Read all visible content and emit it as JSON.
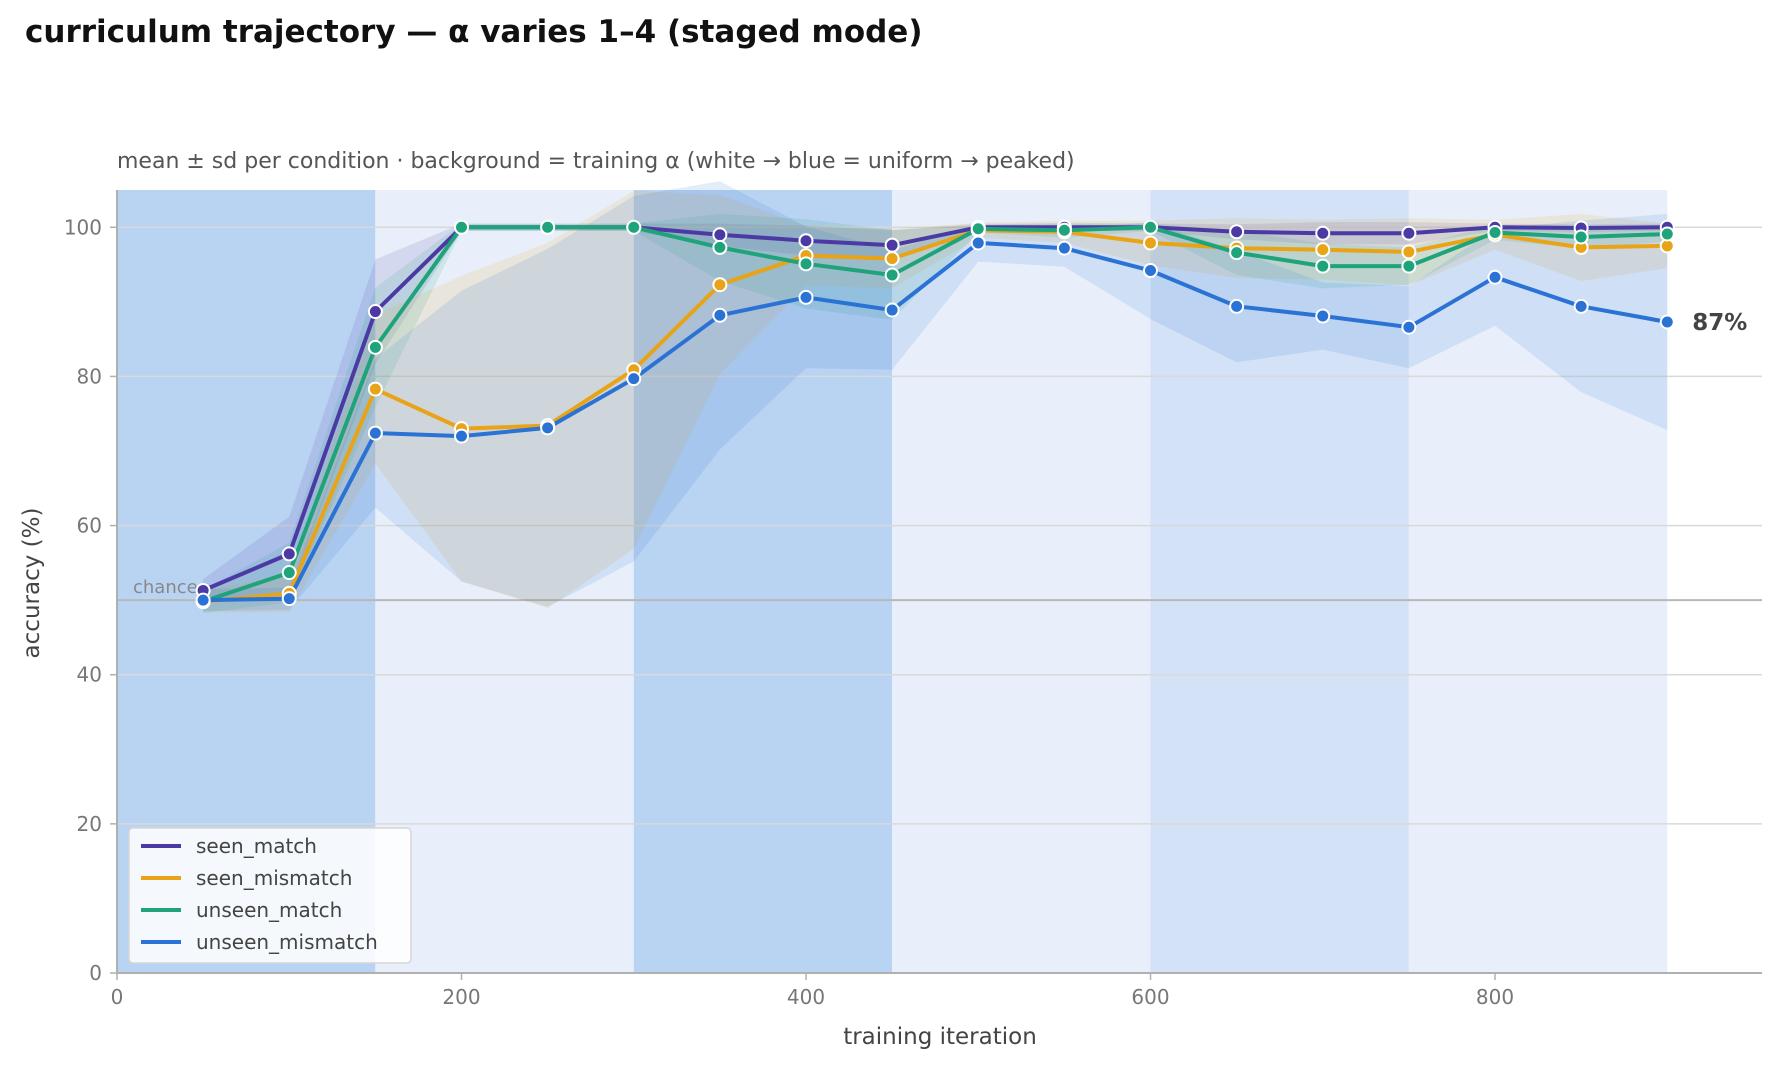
{
  "title": "curriculum trajectory — α varies 1–4 (staged mode)",
  "chart_data": {
    "type": "line",
    "subtitle": "mean ± sd per condition · background = training α (white → blue = uniform → peaked)",
    "xlabel": "training iteration",
    "ylabel": "accuracy (%)",
    "xlim": [
      0,
      955
    ],
    "ylim": [
      0,
      105
    ],
    "xticks": [
      0,
      200,
      400,
      600,
      800
    ],
    "yticks": [
      0,
      20,
      40,
      60,
      80,
      100
    ],
    "grid": "horizontal",
    "legend_position": "lower-left",
    "reference_line": {
      "y": 50,
      "label": "chance"
    },
    "end_label": {
      "series": "unseen_mismatch",
      "text": "87%"
    },
    "background_bands": [
      {
        "x0": 0,
        "x1": 150,
        "alpha_level": 4,
        "color": "#b9d3f3"
      },
      {
        "x0": 150,
        "x1": 300,
        "alpha_level": 1,
        "color": "#e8effb"
      },
      {
        "x0": 300,
        "x1": 450,
        "alpha_level": 4,
        "color": "#b9d3f3"
      },
      {
        "x0": 450,
        "x1": 600,
        "alpha_level": 1,
        "color": "#e8effb"
      },
      {
        "x0": 600,
        "x1": 750,
        "alpha_level": 2,
        "color": "#d3e2f7"
      },
      {
        "x0": 750,
        "x1": 900,
        "alpha_level": 1,
        "color": "#e8effb"
      }
    ],
    "x": [
      50,
      100,
      150,
      200,
      250,
      300,
      350,
      400,
      450,
      500,
      550,
      600,
      650,
      700,
      750,
      800,
      850,
      900
    ],
    "series": [
      {
        "name": "seen_match",
        "color": "#4b3aa3",
        "values": [
          51.3,
          56.2,
          88.7,
          100,
          100,
          100,
          99,
          98.2,
          97.6,
          100,
          100,
          100,
          99.4,
          99.2,
          99.2,
          100,
          99.9,
          100
        ],
        "sd": [
          1.5,
          5,
          7,
          0.5,
          0.5,
          0.5,
          1.5,
          2,
          2,
          0.5,
          0.5,
          0.5,
          1,
          1.5,
          1.5,
          0.5,
          0.5,
          0.5
        ]
      },
      {
        "name": "seen_mismatch",
        "color": "#e8a317",
        "values": [
          49.8,
          50.9,
          78.3,
          73.0,
          73.4,
          80.9,
          92.3,
          96.2,
          95.8,
          99.6,
          99.4,
          97.9,
          97.2,
          97.0,
          96.7,
          99.0,
          97.3,
          97.5
        ],
        "sd": [
          1.5,
          2.5,
          10,
          20.5,
          24.5,
          24,
          12,
          4,
          4,
          1,
          1.5,
          3,
          4,
          4,
          4.5,
          2,
          4.5,
          3
        ]
      },
      {
        "name": "unseen_match",
        "color": "#1ea37a",
        "values": [
          49.8,
          53.7,
          83.9,
          100,
          100,
          100,
          97.3,
          95.1,
          93.6,
          99.8,
          99.6,
          100,
          96.6,
          94.8,
          94.8,
          99.3,
          98.7,
          99.1
        ],
        "sd": [
          1.5,
          4,
          8,
          0.5,
          0.5,
          0.5,
          4.5,
          6,
          6,
          0.5,
          1,
          0.5,
          3,
          3,
          2.5,
          1,
          1.5,
          1
        ]
      },
      {
        "name": "unseen_mismatch",
        "color": "#2a72d4",
        "values": [
          50.0,
          50.2,
          72.4,
          72.0,
          73.1,
          79.7,
          88.2,
          90.6,
          88.9,
          97.9,
          97.2,
          94.2,
          89.4,
          88.1,
          86.6,
          93.3,
          89.4,
          87.3
        ],
        "sd": [
          1.5,
          1.5,
          10,
          19.5,
          24,
          24.5,
          18,
          9.5,
          8,
          2.5,
          2.5,
          6.5,
          7.5,
          4.5,
          5.5,
          6.5,
          11.5,
          14.5
        ]
      }
    ]
  }
}
